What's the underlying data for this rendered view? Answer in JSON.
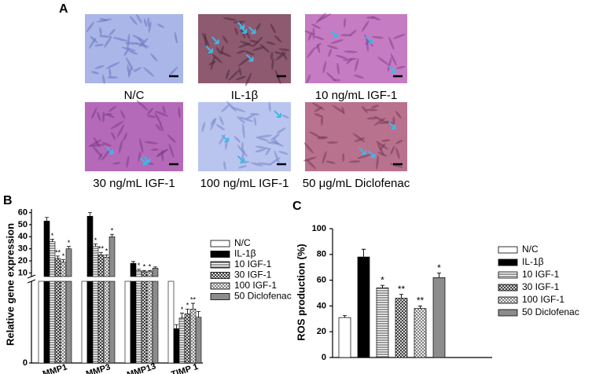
{
  "panel_a": {
    "label": "A",
    "images": [
      {
        "caption": "N/C"
      },
      {
        "caption": "IL-1β"
      },
      {
        "caption": "10 ng/mL IGF-1"
      },
      {
        "caption": "30 ng/mL IGF-1"
      },
      {
        "caption": "100  ng/mL IGF-1"
      },
      {
        "caption": "50 μg/mL Diclofenac"
      }
    ]
  },
  "chart_data": [
    {
      "type": "broken-bar",
      "label": "B",
      "ylabel": "Relative gene expression",
      "categories": [
        "MMP1",
        "MMP3",
        "MMP13",
        "TIMP 1"
      ],
      "ylim_lower": [
        0,
        1
      ],
      "yticks_lower": [
        0
      ],
      "ylim_upper": [
        7,
        63
      ],
      "yticks_upper": [
        10,
        20,
        30,
        40,
        50,
        60
      ],
      "series": [
        {
          "name": "N/C",
          "pattern": "none",
          "values": [
            1,
            1,
            1,
            1
          ],
          "errors": [
            0,
            0,
            0,
            0
          ],
          "sig": [
            null,
            null,
            null,
            null
          ]
        },
        {
          "name": "IL-1β",
          "pattern": "solid",
          "values": [
            53,
            57,
            18,
            0.42
          ],
          "errors": [
            3,
            3,
            1.5,
            0.05
          ],
          "sig": [
            null,
            null,
            null,
            null
          ]
        },
        {
          "name": "10 IGF-1",
          "pattern": "hlines",
          "values": [
            36,
            32,
            12,
            0.55
          ],
          "errors": [
            2,
            2,
            1,
            0.06
          ],
          "sig": [
            "*",
            "*",
            "*",
            "*"
          ]
        },
        {
          "name": "30 IGF-1",
          "pattern": "cross",
          "values": [
            22,
            25,
            11,
            0.6
          ],
          "errors": [
            2,
            2,
            1,
            0.06
          ],
          "sig": [
            "**",
            "**",
            "*",
            "*"
          ]
        },
        {
          "name": "100 IGF-1",
          "pattern": "dots",
          "values": [
            19,
            23,
            11,
            0.66
          ],
          "errors": [
            2,
            2,
            1,
            0.07
          ],
          "sig": [
            "*",
            "*",
            "*",
            "**"
          ]
        },
        {
          "name": "50 Diclofenac",
          "pattern": "gray",
          "values": [
            30,
            40,
            14,
            0.56
          ],
          "errors": [
            2,
            2,
            1,
            0.07
          ],
          "sig": [
            "*",
            "*",
            null,
            null
          ]
        }
      ]
    },
    {
      "type": "bar",
      "label": "C",
      "ylabel": "ROS production (%)",
      "ylim": [
        0,
        100
      ],
      "yticks": [
        0,
        20,
        40,
        60,
        80,
        100
      ],
      "series": [
        {
          "name": "N/C",
          "pattern": "none",
          "values": [
            31
          ],
          "errors": [
            1.5
          ],
          "sig": [
            null
          ]
        },
        {
          "name": "IL-1β",
          "pattern": "solid",
          "values": [
            78
          ],
          "errors": [
            6
          ],
          "sig": [
            null
          ]
        },
        {
          "name": "10 IGF-1",
          "pattern": "hlines",
          "values": [
            54
          ],
          "errors": [
            2
          ],
          "sig": [
            "*"
          ]
        },
        {
          "name": "30 IGF-1",
          "pattern": "cross",
          "values": [
            46
          ],
          "errors": [
            3
          ],
          "sig": [
            "**"
          ]
        },
        {
          "name": "100 IGF-1",
          "pattern": "dots",
          "values": [
            38
          ],
          "errors": [
            2
          ],
          "sig": [
            "**"
          ]
        },
        {
          "name": "50 Diclofenac",
          "pattern": "gray",
          "values": [
            62
          ],
          "errors": [
            3.5
          ],
          "sig": [
            "*"
          ]
        }
      ]
    }
  ]
}
